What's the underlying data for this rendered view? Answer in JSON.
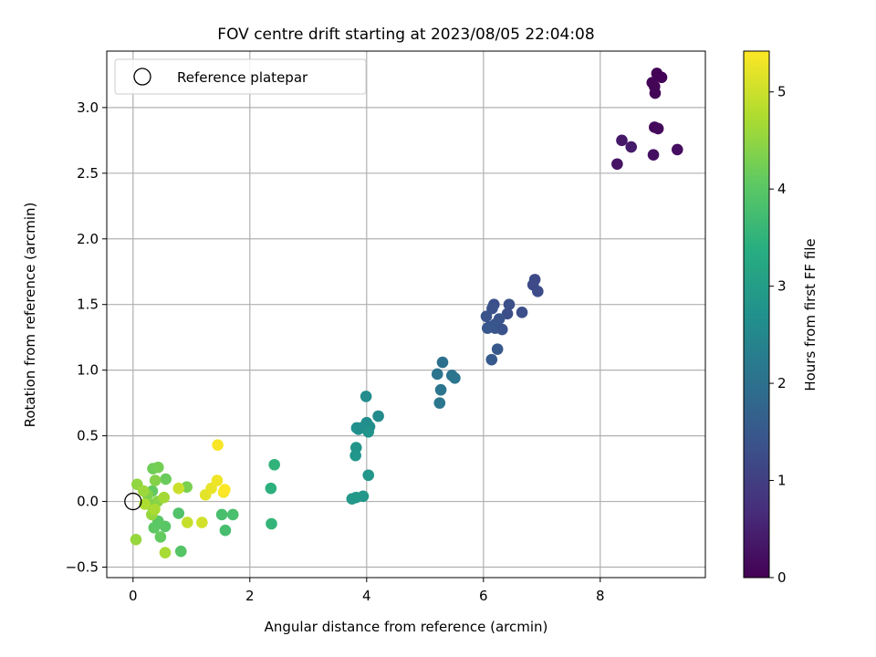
{
  "chart_data": {
    "type": "scatter",
    "title": "FOV centre drift starting at 2023/08/05 22:04:08",
    "xlabel": "Angular distance from reference (arcmin)",
    "ylabel": "Rotation from reference (arcmin)",
    "xlim": [
      -0.45,
      9.8
    ],
    "ylim": [
      -0.58,
      3.43
    ],
    "x_ticks": [
      0,
      2,
      4,
      6,
      8
    ],
    "x_tick_labels": [
      "0",
      "2",
      "4",
      "6",
      "8"
    ],
    "y_ticks": [
      -0.5,
      0.0,
      0.5,
      1.0,
      1.5,
      2.0,
      2.5,
      3.0
    ],
    "y_tick_labels": [
      "−0.5",
      "0.0",
      "0.5",
      "1.0",
      "1.5",
      "2.0",
      "2.5",
      "3.0"
    ],
    "grid": true,
    "colorbar": {
      "label": "Hours from first FF file",
      "colormap": "viridis",
      "range": [
        0,
        5.42
      ],
      "ticks": [
        0,
        1,
        2,
        3,
        4,
        5
      ],
      "tick_labels": [
        "0",
        "1",
        "2",
        "3",
        "4",
        "5"
      ]
    },
    "legend": {
      "placement": "upper-left",
      "entries": [
        "Reference platepar"
      ]
    },
    "reference_point": {
      "x": 0.0,
      "y": 0.0,
      "marker": "open-circle"
    },
    "points": [
      {
        "x": 8.97,
        "y": 3.26,
        "c": 0.02
      },
      {
        "x": 9.05,
        "y": 3.23,
        "c": 0.03
      },
      {
        "x": 8.89,
        "y": 3.19,
        "c": 0.05
      },
      {
        "x": 8.93,
        "y": 3.16,
        "c": 0.06
      },
      {
        "x": 8.94,
        "y": 3.11,
        "c": 0.07
      },
      {
        "x": 8.93,
        "y": 2.85,
        "c": 0.12
      },
      {
        "x": 8.99,
        "y": 2.84,
        "c": 0.14
      },
      {
        "x": 8.37,
        "y": 2.75,
        "c": 0.35
      },
      {
        "x": 8.53,
        "y": 2.7,
        "c": 0.4
      },
      {
        "x": 9.32,
        "y": 2.68,
        "c": 0.2
      },
      {
        "x": 8.91,
        "y": 2.64,
        "c": 0.22
      },
      {
        "x": 8.29,
        "y": 2.57,
        "c": 0.3
      },
      {
        "x": 6.88,
        "y": 1.69,
        "c": 1.2
      },
      {
        "x": 6.85,
        "y": 1.65,
        "c": 1.22
      },
      {
        "x": 6.93,
        "y": 1.6,
        "c": 1.25
      },
      {
        "x": 6.18,
        "y": 1.5,
        "c": 1.3
      },
      {
        "x": 6.44,
        "y": 1.5,
        "c": 1.32
      },
      {
        "x": 6.15,
        "y": 1.47,
        "c": 1.35
      },
      {
        "x": 6.66,
        "y": 1.44,
        "c": 1.3
      },
      {
        "x": 6.41,
        "y": 1.43,
        "c": 1.28
      },
      {
        "x": 6.05,
        "y": 1.41,
        "c": 1.38
      },
      {
        "x": 6.27,
        "y": 1.39,
        "c": 1.4
      },
      {
        "x": 6.2,
        "y": 1.35,
        "c": 1.42
      },
      {
        "x": 6.1,
        "y": 1.33,
        "c": 1.45
      },
      {
        "x": 6.2,
        "y": 1.32,
        "c": 1.43
      },
      {
        "x": 6.32,
        "y": 1.31,
        "c": 1.4
      },
      {
        "x": 6.07,
        "y": 1.32,
        "c": 1.47
      },
      {
        "x": 6.24,
        "y": 1.16,
        "c": 1.5
      },
      {
        "x": 6.14,
        "y": 1.08,
        "c": 1.52
      },
      {
        "x": 5.3,
        "y": 1.06,
        "c": 2.0
      },
      {
        "x": 5.21,
        "y": 0.97,
        "c": 2.05
      },
      {
        "x": 5.46,
        "y": 0.96,
        "c": 2.08
      },
      {
        "x": 5.51,
        "y": 0.94,
        "c": 2.1
      },
      {
        "x": 5.27,
        "y": 0.85,
        "c": 2.12
      },
      {
        "x": 5.25,
        "y": 0.75,
        "c": 2.15
      },
      {
        "x": 3.99,
        "y": 0.8,
        "c": 2.6
      },
      {
        "x": 4.2,
        "y": 0.65,
        "c": 2.55
      },
      {
        "x": 4.0,
        "y": 0.6,
        "c": 2.62
      },
      {
        "x": 3.83,
        "y": 0.56,
        "c": 2.7
      },
      {
        "x": 3.86,
        "y": 0.55,
        "c": 2.72
      },
      {
        "x": 4.05,
        "y": 0.57,
        "c": 2.65
      },
      {
        "x": 3.9,
        "y": 0.56,
        "c": 2.68
      },
      {
        "x": 4.03,
        "y": 0.53,
        "c": 2.75
      },
      {
        "x": 3.82,
        "y": 0.41,
        "c": 2.8
      },
      {
        "x": 3.81,
        "y": 0.35,
        "c": 2.82
      },
      {
        "x": 4.03,
        "y": 0.2,
        "c": 2.85
      },
      {
        "x": 3.75,
        "y": 0.02,
        "c": 2.9
      },
      {
        "x": 3.82,
        "y": 0.03,
        "c": 2.88
      },
      {
        "x": 3.94,
        "y": 0.04,
        "c": 2.86
      },
      {
        "x": 2.42,
        "y": 0.28,
        "c": 3.5
      },
      {
        "x": 2.36,
        "y": 0.1,
        "c": 3.45
      },
      {
        "x": 2.37,
        "y": -0.17,
        "c": 3.55
      },
      {
        "x": 1.52,
        "y": -0.1,
        "c": 3.8
      },
      {
        "x": 1.71,
        "y": -0.1,
        "c": 3.82
      },
      {
        "x": 1.58,
        "y": -0.22,
        "c": 3.78
      },
      {
        "x": 0.78,
        "y": -0.09,
        "c": 3.9
      },
      {
        "x": 0.82,
        "y": -0.38,
        "c": 3.95
      },
      {
        "x": 0.55,
        "y": -0.19,
        "c": 4.0
      },
      {
        "x": 0.36,
        "y": -0.2,
        "c": 4.05
      },
      {
        "x": 0.47,
        "y": -0.27,
        "c": 4.1
      },
      {
        "x": 0.43,
        "y": -0.15,
        "c": 4.02
      },
      {
        "x": 0.33,
        "y": 0.08,
        "c": 4.1
      },
      {
        "x": 0.34,
        "y": 0.25,
        "c": 4.2
      },
      {
        "x": 0.43,
        "y": 0.26,
        "c": 4.25
      },
      {
        "x": 0.56,
        "y": 0.17,
        "c": 4.15
      },
      {
        "x": 0.92,
        "y": 0.11,
        "c": 4.3
      },
      {
        "x": 0.38,
        "y": 0.16,
        "c": 4.4
      },
      {
        "x": 0.25,
        "y": 0.05,
        "c": 4.35
      },
      {
        "x": 0.42,
        "y": 0.0,
        "c": 4.45
      },
      {
        "x": 0.27,
        "y": -0.02,
        "c": 4.38
      },
      {
        "x": 0.07,
        "y": 0.13,
        "c": 4.5
      },
      {
        "x": 0.05,
        "y": -0.29,
        "c": 4.55
      },
      {
        "x": 0.32,
        "y": -0.1,
        "c": 4.55
      },
      {
        "x": 0.55,
        "y": -0.39,
        "c": 4.7
      },
      {
        "x": 0.18,
        "y": 0.08,
        "c": 4.6
      },
      {
        "x": 0.53,
        "y": 0.03,
        "c": 4.65
      },
      {
        "x": 0.2,
        "y": -0.02,
        "c": 4.75
      },
      {
        "x": 0.37,
        "y": -0.06,
        "c": 4.72
      },
      {
        "x": 0.78,
        "y": 0.1,
        "c": 5.0
      },
      {
        "x": 0.93,
        "y": -0.16,
        "c": 4.95
      },
      {
        "x": 1.18,
        "y": -0.16,
        "c": 5.05
      },
      {
        "x": 1.24,
        "y": 0.05,
        "c": 5.2
      },
      {
        "x": 1.34,
        "y": 0.1,
        "c": 5.25
      },
      {
        "x": 1.44,
        "y": 0.16,
        "c": 5.3
      },
      {
        "x": 1.55,
        "y": 0.07,
        "c": 5.35
      },
      {
        "x": 1.57,
        "y": 0.09,
        "c": 5.4
      },
      {
        "x": 1.45,
        "y": 0.43,
        "c": 5.38
      }
    ]
  }
}
